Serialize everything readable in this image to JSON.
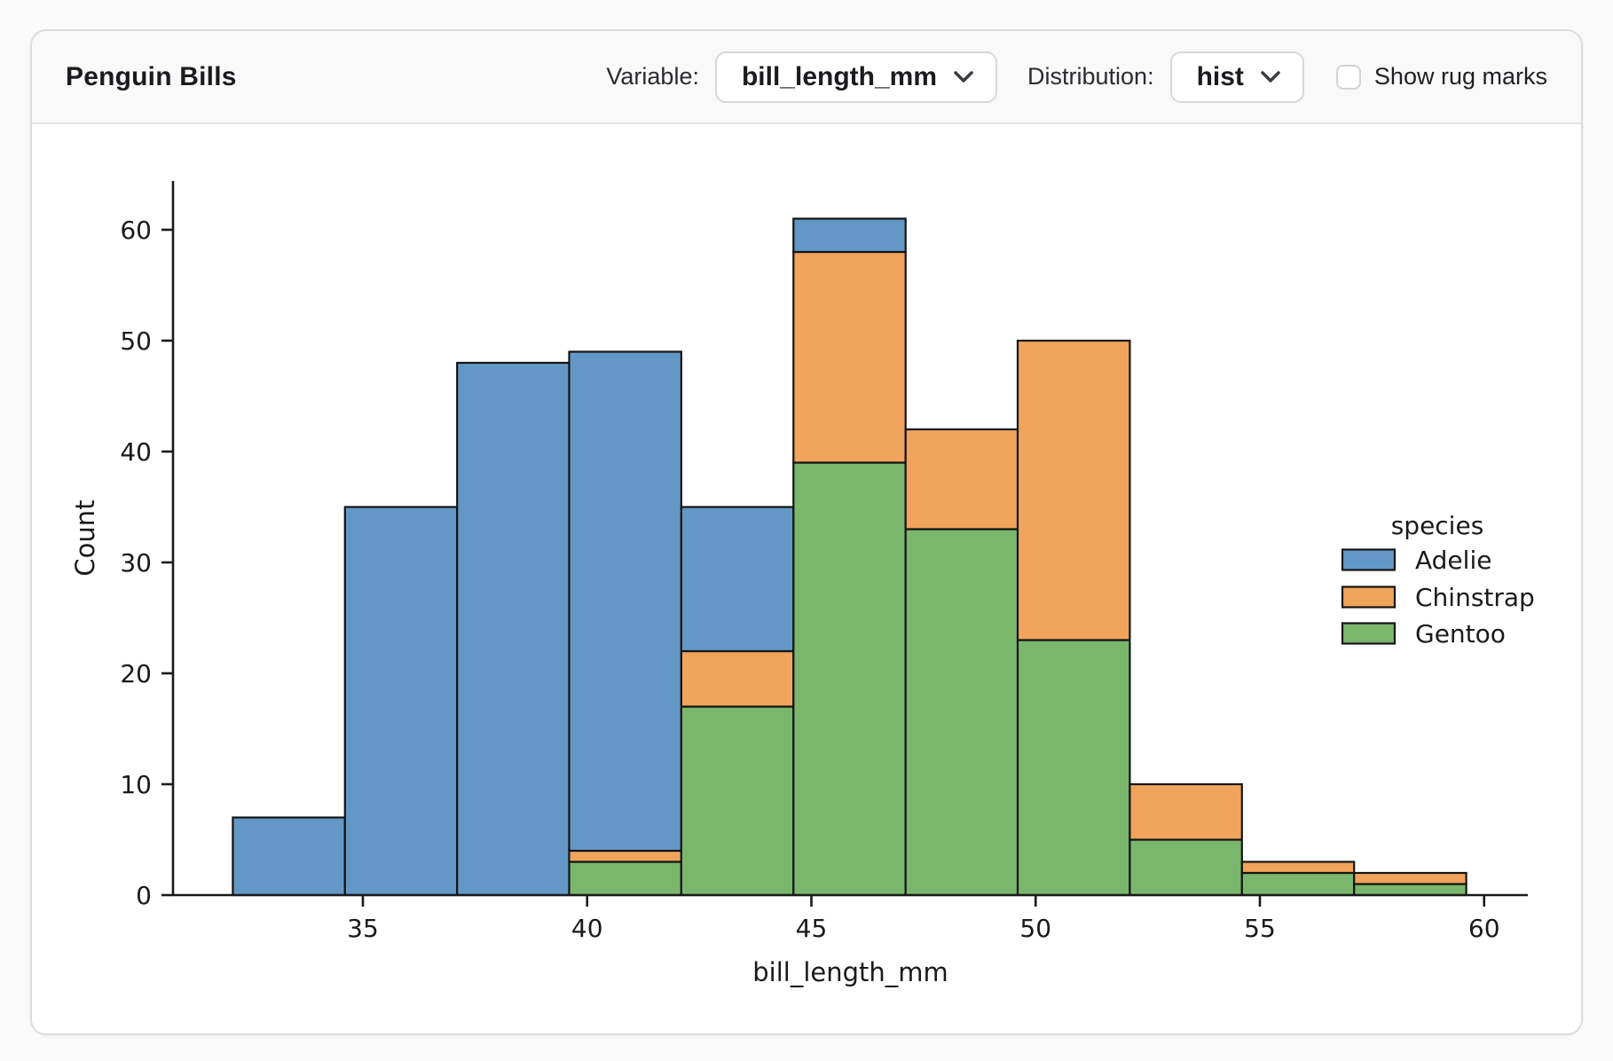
{
  "header": {
    "title": "Penguin Bills",
    "variable_label": "Variable:",
    "variable_value": "bill_length_mm",
    "distribution_label": "Distribution:",
    "distribution_value": "hist",
    "rug_label": "Show rug marks",
    "rug_checked": false
  },
  "chart_data": {
    "type": "bar",
    "subtype": "stacked_histogram",
    "xlabel": "bill_length_mm",
    "ylabel": "Count",
    "bin_edges": [
      32.1,
      34.6,
      37.1,
      39.6,
      42.1,
      44.6,
      47.1,
      49.6,
      52.1,
      54.6,
      57.1,
      59.6
    ],
    "series": [
      {
        "name": "Adelie",
        "color": "#6398c6",
        "values": [
          7,
          35,
          48,
          45,
          13,
          3,
          0,
          0,
          0,
          0,
          0
        ]
      },
      {
        "name": "Chinstrap",
        "color": "#f0a45c",
        "values": [
          0,
          0,
          0,
          1,
          5,
          19,
          9,
          27,
          5,
          1,
          1
        ]
      },
      {
        "name": "Gentoo",
        "color": "#7ab66c",
        "values": [
          0,
          0,
          0,
          3,
          17,
          39,
          33,
          23,
          5,
          2,
          1
        ]
      }
    ],
    "stack_order_bottom_to_top": [
      "Gentoo",
      "Chinstrap",
      "Adelie"
    ],
    "bin_totals": [
      7,
      35,
      48,
      49,
      35,
      61,
      42,
      50,
      10,
      3,
      2
    ],
    "xticks": [
      35,
      40,
      45,
      50,
      55,
      60
    ],
    "yticks": [
      0,
      10,
      20,
      30,
      40,
      50,
      60
    ],
    "xlim": [
      30.725,
      60.975
    ],
    "ylim": [
      0,
      64.4
    ],
    "grid": false,
    "edge_color": "#141414",
    "axis_color": "#1a1a1a",
    "legend": {
      "title": "species",
      "position": "center-right-inside",
      "entries": [
        {
          "label": "Adelie",
          "color": "#6398c6"
        },
        {
          "label": "Chinstrap",
          "color": "#f0a45c"
        },
        {
          "label": "Gentoo",
          "color": "#7ab66c"
        }
      ]
    }
  }
}
